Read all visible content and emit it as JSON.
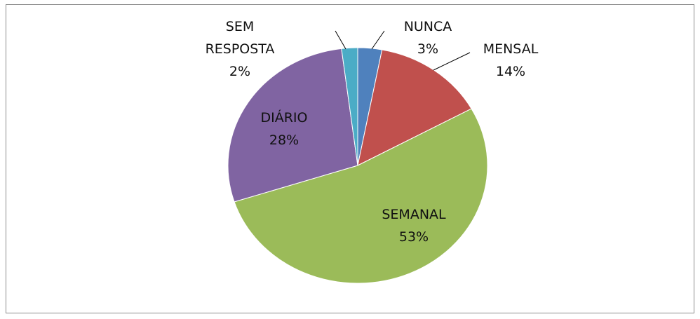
{
  "chart_data": {
    "type": "pie",
    "categories": [
      "NUNCA",
      "MENSAL",
      "SEMANAL",
      "DIÁRIO",
      "SEM RESPOSTA"
    ],
    "values": [
      3,
      14,
      53,
      28,
      2
    ],
    "value_labels": [
      "3%",
      "14%",
      "53%",
      "28%",
      "2%"
    ],
    "colors": [
      "#4f81bd",
      "#c0504d",
      "#9bbb59",
      "#8064a2",
      "#4bacc6"
    ]
  }
}
